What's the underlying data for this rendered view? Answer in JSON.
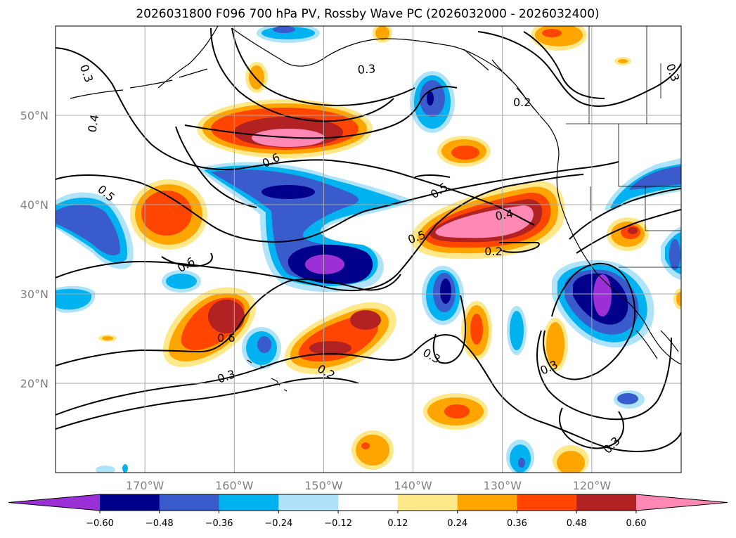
{
  "title": "2026031800 F096 700 hPa PV, Rossby Wave PC (2026032000 - 2026032400)",
  "map": {
    "lon_range": [
      -180,
      -110
    ],
    "lat_range": [
      10,
      60
    ],
    "projection": "plate-carree",
    "grid": true,
    "grid_color": "#a8a8a8",
    "lat_ticks": [
      {
        "value": 20,
        "label": "20°N"
      },
      {
        "value": 30,
        "label": "30°N"
      },
      {
        "value": 40,
        "label": "40°N"
      },
      {
        "value": 50,
        "label": "50°N"
      }
    ],
    "lon_ticks": [
      {
        "value": -170,
        "label": "170°W"
      },
      {
        "value": -160,
        "label": "160°W"
      },
      {
        "value": -150,
        "label": "150°W"
      },
      {
        "value": -140,
        "label": "140°W"
      },
      {
        "value": -130,
        "label": "130°W"
      },
      {
        "value": -120,
        "label": "120°W"
      }
    ]
  },
  "colorbar": {
    "orientation": "horizontal",
    "extend": "both",
    "levels": [
      "−0.60",
      "−0.48",
      "−0.36",
      "−0.24",
      "−0.12",
      "0.12",
      "0.24",
      "0.36",
      "0.48",
      "0.60"
    ],
    "colors": [
      "#9b30d6",
      "#00008b",
      "#3a5bcc",
      "#00b2f0",
      "#aee3fa",
      "#ffffff",
      "#ffe88a",
      "#ffa500",
      "#ff4500",
      "#b22222",
      "#ff88b4"
    ]
  },
  "contour_labels": [
    {
      "text": "0.3",
      "lon": -176.5,
      "lat": 54.7,
      "angle": 70
    },
    {
      "text": "0.4",
      "lon": -175.8,
      "lat": 49.1,
      "angle": -80
    },
    {
      "text": "0.3",
      "lon": -145.2,
      "lat": 55.2,
      "angle": -5
    },
    {
      "text": "0.2",
      "lon": -127.8,
      "lat": 51.5,
      "angle": 0
    },
    {
      "text": "0.3",
      "lon": -110.9,
      "lat": 54.8,
      "angle": 70
    },
    {
      "text": "0.6",
      "lon": -155.9,
      "lat": 45.0,
      "angle": -25
    },
    {
      "text": "0.5",
      "lon": -137.1,
      "lat": 41.6,
      "angle": -35
    },
    {
      "text": "0.5",
      "lon": -174.3,
      "lat": 41.3,
      "angle": 40
    },
    {
      "text": "0.4",
      "lon": -129.8,
      "lat": 38.9,
      "angle": -10
    },
    {
      "text": "0.5",
      "lon": -139.6,
      "lat": 36.4,
      "angle": -20
    },
    {
      "text": "0.2",
      "lon": -131.0,
      "lat": 34.8,
      "angle": 0
    },
    {
      "text": "0.6",
      "lon": -165.4,
      "lat": 33.3,
      "angle": -30
    },
    {
      "text": "0.6",
      "lon": -160.9,
      "lat": 25.1,
      "angle": 0
    },
    {
      "text": "0.3",
      "lon": -137.9,
      "lat": 23.1,
      "angle": 30
    },
    {
      "text": "0.3",
      "lon": -124.8,
      "lat": 21.8,
      "angle": -25
    },
    {
      "text": "0.2",
      "lon": -149.7,
      "lat": 21.3,
      "angle": 30
    },
    {
      "text": "0.3",
      "lon": -160.9,
      "lat": 20.8,
      "angle": -20
    },
    {
      "text": "0.3",
      "lon": -117.8,
      "lat": 13.1,
      "angle": -45
    }
  ]
}
